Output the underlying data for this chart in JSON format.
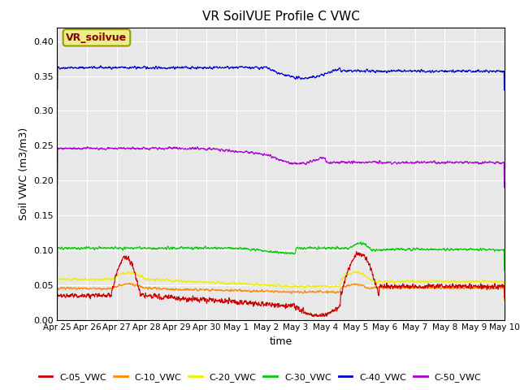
{
  "title": "VR SoilVUE Profile C VWC",
  "ylabel": "Soil VWC (m3/m3)",
  "xlabel": "time",
  "ylim": [
    0.0,
    0.42
  ],
  "yticks": [
    0.0,
    0.05,
    0.1,
    0.15,
    0.2,
    0.25,
    0.3,
    0.35,
    0.4
  ],
  "plot_bg_color": "#e8e8e8",
  "series": {
    "C-05_VWC": {
      "color": "#cc0000",
      "label": "C-05_VWC"
    },
    "C-10_VWC": {
      "color": "#ff8800",
      "label": "C-10_VWC"
    },
    "C-20_VWC": {
      "color": "#eeee00",
      "label": "C-20_VWC"
    },
    "C-30_VWC": {
      "color": "#00cc00",
      "label": "C-30_VWC"
    },
    "C-40_VWC": {
      "color": "#0000cc",
      "label": "C-40_VWC"
    },
    "C-50_VWC": {
      "color": "#aa00cc",
      "label": "C-50_VWC"
    }
  },
  "legend_box_color": "#eeee88",
  "legend_text": "VR_soilvue",
  "legend_text_color": "#880000",
  "n_points": 2160
}
